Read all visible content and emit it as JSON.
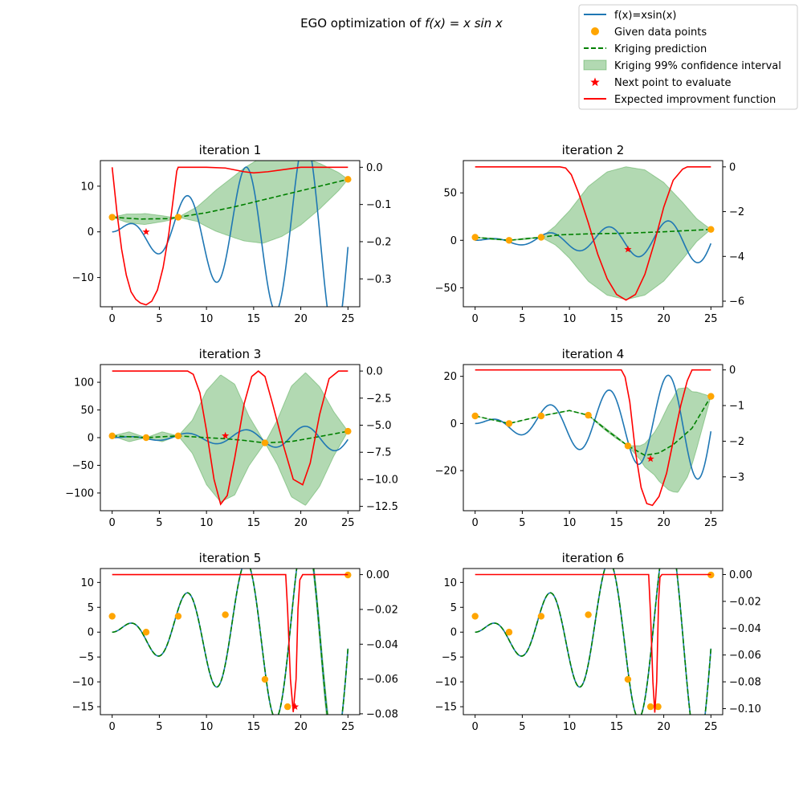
{
  "figure": {
    "title_prefix": "EGO optimization of ",
    "title_math": "f(x) = x sin x"
  },
  "legend": {
    "location": "top-right",
    "entries": [
      {
        "label": "f(x)=xsin(x)",
        "kind": "line",
        "color": "#1f77b4"
      },
      {
        "label": "Given data points",
        "kind": "dot",
        "color": "#ffa500"
      },
      {
        "label": "Kriging prediction",
        "kind": "dash",
        "color": "#008000"
      },
      {
        "label": "Kriging 99% confidence interval",
        "kind": "patch",
        "color": "#008000"
      },
      {
        "label": "Next point to evaluate",
        "kind": "star",
        "color": "#ff0000"
      },
      {
        "label": "Expected improvment function",
        "kind": "line",
        "color": "#ff0000"
      }
    ]
  },
  "colors": {
    "function": "#1f77b4",
    "data_points": "#ffa500",
    "prediction": "#008000",
    "confidence_fill": "#008000",
    "next_point": "#ff0000",
    "expected_improvement": "#ff0000"
  },
  "chart_data": [
    {
      "type": "line",
      "title": "iteration 1",
      "x_range": [
        0,
        25
      ],
      "xticks": [
        0,
        5,
        10,
        15,
        20,
        25
      ],
      "ylim": [
        -16.4,
        15.6
      ],
      "yticks": [
        -10,
        0,
        10
      ],
      "ei_ylim": [
        -0.375,
        0.018
      ],
      "ei_yticks": [
        -0.3,
        -0.2,
        -0.1,
        0.0
      ],
      "ei_ytick_labels": [
        "−0.3",
        "−0.2",
        "−0.1",
        "0.0"
      ],
      "data_points": [
        [
          0,
          3.2
        ],
        [
          7.0,
          3.2
        ],
        [
          25,
          11.5
        ]
      ],
      "next_point": [
        3.6,
        0.0
      ],
      "prediction": [
        [
          0,
          3.2
        ],
        [
          3,
          2.8
        ],
        [
          6,
          2.9
        ],
        [
          7,
          3.2
        ],
        [
          10,
          4.2
        ],
        [
          13,
          5.5
        ],
        [
          16,
          7.0
        ],
        [
          20,
          9.0
        ],
        [
          23,
          10.5
        ],
        [
          25,
          11.5
        ]
      ],
      "confidence_halfwidth": [
        [
          0,
          0
        ],
        [
          1.5,
          0.9
        ],
        [
          3.5,
          1.2
        ],
        [
          5.5,
          0.6
        ],
        [
          7,
          0
        ],
        [
          9,
          1.6
        ],
        [
          11,
          4.5
        ],
        [
          14,
          8.0
        ],
        [
          16,
          9.5
        ],
        [
          18,
          9.0
        ],
        [
          20,
          7.5
        ],
        [
          22,
          5.0
        ],
        [
          24,
          2.0
        ],
        [
          25,
          0
        ]
      ],
      "ei": [
        [
          0,
          0.0
        ],
        [
          0.5,
          -0.12
        ],
        [
          1.0,
          -0.22
        ],
        [
          1.5,
          -0.29
        ],
        [
          2.0,
          -0.335
        ],
        [
          2.5,
          -0.355
        ],
        [
          3.0,
          -0.365
        ],
        [
          3.6,
          -0.37
        ],
        [
          4.2,
          -0.36
        ],
        [
          4.8,
          -0.33
        ],
        [
          5.4,
          -0.27
        ],
        [
          6.0,
          -0.18
        ],
        [
          6.5,
          -0.08
        ],
        [
          6.85,
          -0.01
        ],
        [
          7.0,
          0.0
        ],
        [
          10.0,
          0.0
        ],
        [
          12.0,
          -0.002
        ],
        [
          14.0,
          -0.012
        ],
        [
          15.0,
          -0.015
        ],
        [
          16.5,
          -0.012
        ],
        [
          18.5,
          -0.005
        ],
        [
          20.0,
          0.0
        ],
        [
          25,
          0.0
        ]
      ]
    },
    {
      "type": "line",
      "title": "iteration 2",
      "x_range": [
        0,
        25
      ],
      "xticks": [
        0,
        5,
        10,
        15,
        20,
        25
      ],
      "ylim": [
        -70,
        84
      ],
      "yticks": [
        -50,
        0,
        50
      ],
      "ei_ylim": [
        -6.25,
        0.28
      ],
      "ei_yticks": [
        -6,
        -4,
        -2,
        0
      ],
      "ei_ytick_labels": [
        "−6",
        "−4",
        "−2",
        "0"
      ],
      "data_points": [
        [
          0,
          3.2
        ],
        [
          3.6,
          0.0
        ],
        [
          7.0,
          3.2
        ],
        [
          25,
          11.5
        ]
      ],
      "next_point": [
        16.2,
        -9.5
      ],
      "prediction": [
        [
          0,
          3.2
        ],
        [
          3.6,
          0.0
        ],
        [
          7,
          3.2
        ],
        [
          9,
          5.8
        ],
        [
          12,
          6.8
        ],
        [
          16,
          7.5
        ],
        [
          20,
          9.0
        ],
        [
          23,
          10.5
        ],
        [
          25,
          11.5
        ]
      ],
      "confidence_halfwidth": [
        [
          0,
          0
        ],
        [
          1.8,
          0.8
        ],
        [
          3.6,
          0
        ],
        [
          5.3,
          0.8
        ],
        [
          7,
          0
        ],
        [
          8.5,
          10
        ],
        [
          10,
          25
        ],
        [
          12,
          50
        ],
        [
          14,
          65
        ],
        [
          16,
          70
        ],
        [
          18,
          66
        ],
        [
          20,
          52
        ],
        [
          22,
          30
        ],
        [
          23.5,
          12
        ],
        [
          25,
          0
        ]
      ],
      "ei": [
        [
          0,
          0.0
        ],
        [
          9.0,
          0.0
        ],
        [
          9.6,
          -0.05
        ],
        [
          10.2,
          -0.35
        ],
        [
          11.0,
          -1.2
        ],
        [
          12.0,
          -2.5
        ],
        [
          13.0,
          -3.9
        ],
        [
          14.0,
          -5.0
        ],
        [
          15.0,
          -5.7
        ],
        [
          16.0,
          -5.95
        ],
        [
          17.0,
          -5.7
        ],
        [
          18.0,
          -4.8
        ],
        [
          19.0,
          -3.4
        ],
        [
          20.0,
          -1.8
        ],
        [
          21.0,
          -0.6
        ],
        [
          22.0,
          -0.1
        ],
        [
          22.5,
          0.0
        ],
        [
          25,
          0.0
        ]
      ]
    },
    {
      "type": "line",
      "title": "iteration 3",
      "x_range": [
        0,
        25
      ],
      "xticks": [
        0,
        5,
        10,
        15,
        20,
        25
      ],
      "ylim": [
        -132,
        132
      ],
      "yticks": [
        -100,
        -50,
        0,
        50,
        100
      ],
      "ei_ylim": [
        -12.9,
        0.6
      ],
      "ei_yticks": [
        -12.5,
        -10.0,
        -7.5,
        -5.0,
        -2.5,
        0.0
      ],
      "ei_ytick_labels": [
        "−12.5",
        "−10.0",
        "−7.5",
        "−5.0",
        "−2.5",
        "0.0"
      ],
      "data_points": [
        [
          0,
          3.2
        ],
        [
          3.6,
          0.0
        ],
        [
          7.0,
          3.2
        ],
        [
          16.2,
          -9.5
        ],
        [
          25,
          11.5
        ]
      ],
      "next_point": [
        12.0,
        3.5
      ],
      "prediction": [
        [
          0,
          3.2
        ],
        [
          3.6,
          0.0
        ],
        [
          7,
          3.2
        ],
        [
          10,
          0
        ],
        [
          12,
          -2
        ],
        [
          14,
          -5
        ],
        [
          16.2,
          -9.5
        ],
        [
          19,
          -7
        ],
        [
          22,
          2
        ],
        [
          25,
          11.5
        ]
      ],
      "confidence_halfwidth": [
        [
          0,
          0
        ],
        [
          1.8,
          9
        ],
        [
          3.6,
          0
        ],
        [
          5.3,
          9
        ],
        [
          7,
          0
        ],
        [
          8.5,
          30
        ],
        [
          10,
          85
        ],
        [
          11.5,
          115
        ],
        [
          13,
          100
        ],
        [
          14.5,
          45
        ],
        [
          16.2,
          0
        ],
        [
          17.5,
          40
        ],
        [
          19,
          100
        ],
        [
          20.5,
          120
        ],
        [
          22,
          90
        ],
        [
          23.5,
          40
        ],
        [
          25,
          0
        ]
      ],
      "ei": [
        [
          0,
          0.0
        ],
        [
          8.0,
          0.0
        ],
        [
          8.6,
          -0.3
        ],
        [
          9.3,
          -2.0
        ],
        [
          10.0,
          -5.5
        ],
        [
          10.8,
          -10.0
        ],
        [
          11.5,
          -12.3
        ],
        [
          12.2,
          -11.5
        ],
        [
          13.0,
          -8.0
        ],
        [
          14.0,
          -3.0
        ],
        [
          14.8,
          -0.5
        ],
        [
          15.5,
          0.0
        ],
        [
          16.2,
          -0.5
        ],
        [
          17.0,
          -3.0
        ],
        [
          18.2,
          -7.0
        ],
        [
          19.2,
          -10.0
        ],
        [
          20.2,
          -10.5
        ],
        [
          21.0,
          -8.5
        ],
        [
          22.0,
          -4.0
        ],
        [
          23.0,
          -0.7
        ],
        [
          24.0,
          0.0
        ],
        [
          25,
          0.0
        ]
      ]
    },
    {
      "type": "line",
      "title": "iteration 4",
      "x_range": [
        0,
        25
      ],
      "xticks": [
        0,
        5,
        10,
        15,
        20,
        25
      ],
      "ylim": [
        -37,
        25
      ],
      "yticks": [
        -20,
        0,
        20
      ],
      "ei_ylim": [
        -3.95,
        0.15
      ],
      "ei_yticks": [
        -3,
        -2,
        -1,
        0
      ],
      "ei_ytick_labels": [
        "−3",
        "−2",
        "−1",
        "0"
      ],
      "data_points": [
        [
          0,
          3.2
        ],
        [
          3.6,
          0.0
        ],
        [
          7.0,
          3.2
        ],
        [
          12.0,
          3.5
        ],
        [
          16.2,
          -9.5
        ],
        [
          25,
          11.5
        ]
      ],
      "next_point": [
        18.6,
        -15.0
      ],
      "prediction": [
        [
          0,
          3.2
        ],
        [
          3.6,
          0.0
        ],
        [
          7,
          3.2
        ],
        [
          10,
          5.5
        ],
        [
          12,
          3.5
        ],
        [
          14,
          -3.0
        ],
        [
          16.2,
          -9.5
        ],
        [
          18,
          -13.5
        ],
        [
          19.5,
          -12.5
        ],
        [
          21,
          -9.0
        ],
        [
          23,
          -2.0
        ],
        [
          25,
          11.5
        ]
      ],
      "confidence_halfwidth": [
        [
          0,
          0
        ],
        [
          3.6,
          0
        ],
        [
          7,
          0
        ],
        [
          12,
          0
        ],
        [
          13.5,
          0.5
        ],
        [
          15,
          0.5
        ],
        [
          16.2,
          0
        ],
        [
          17.5,
          3
        ],
        [
          19,
          9
        ],
        [
          20.5,
          18
        ],
        [
          21.5,
          22
        ],
        [
          22.5,
          19
        ],
        [
          23.5,
          12
        ],
        [
          24.5,
          4
        ],
        [
          25,
          0
        ]
      ],
      "ei": [
        [
          0,
          0.0
        ],
        [
          15.5,
          0.0
        ],
        [
          15.9,
          -0.2
        ],
        [
          16.4,
          -0.9
        ],
        [
          17.0,
          -2.3
        ],
        [
          17.6,
          -3.3
        ],
        [
          18.2,
          -3.75
        ],
        [
          18.8,
          -3.8
        ],
        [
          19.5,
          -3.55
        ],
        [
          20.3,
          -2.9
        ],
        [
          21.0,
          -2.0
        ],
        [
          21.8,
          -1.0
        ],
        [
          22.5,
          -0.3
        ],
        [
          23.0,
          0.0
        ],
        [
          25,
          0.0
        ]
      ]
    },
    {
      "type": "line",
      "title": "iteration 5",
      "x_range": [
        0,
        25
      ],
      "xticks": [
        0,
        5,
        10,
        15,
        20,
        25
      ],
      "ylim": [
        -16.6,
        12.8
      ],
      "yticks": [
        -15,
        -10,
        -5,
        0,
        5,
        10
      ],
      "ei_ylim": [
        -0.0805,
        0.0035
      ],
      "ei_yticks": [
        -0.08,
        -0.06,
        -0.04,
        -0.02,
        0.0
      ],
      "ei_ytick_labels": [
        "−0.08",
        "−0.06",
        "−0.04",
        "−0.02",
        "0.00"
      ],
      "data_points": [
        [
          0,
          3.2
        ],
        [
          3.6,
          0.0
        ],
        [
          7.0,
          3.2
        ],
        [
          12.0,
          3.5
        ],
        [
          16.2,
          -9.5
        ],
        [
          18.6,
          -15.0
        ],
        [
          25,
          11.5
        ]
      ],
      "next_point": [
        19.4,
        -15.0
      ],
      "prediction": "follows f",
      "confidence_halfwidth": [
        [
          0,
          0
        ],
        [
          18.6,
          0
        ],
        [
          19.5,
          0.3
        ],
        [
          21,
          1.2
        ],
        [
          22.5,
          2.0
        ],
        [
          24,
          1.0
        ],
        [
          25,
          0
        ]
      ],
      "ei": [
        [
          0,
          0.0
        ],
        [
          18.4,
          0.0
        ],
        [
          18.6,
          -0.02
        ],
        [
          18.9,
          -0.06
        ],
        [
          19.2,
          -0.079
        ],
        [
          19.5,
          -0.06
        ],
        [
          19.7,
          -0.02
        ],
        [
          19.9,
          -0.003
        ],
        [
          20.2,
          0.0
        ],
        [
          25,
          0.0
        ]
      ]
    },
    {
      "type": "line",
      "title": "iteration 6",
      "x_range": [
        0,
        25
      ],
      "xticks": [
        0,
        5,
        10,
        15,
        20,
        25
      ],
      "ylim": [
        -16.6,
        12.8
      ],
      "yticks": [
        -15,
        -10,
        -5,
        0,
        5,
        10
      ],
      "ei_ylim": [
        -0.1045,
        0.0045
      ],
      "ei_yticks": [
        -0.1,
        -0.08,
        -0.06,
        -0.04,
        -0.02,
        0.0
      ],
      "ei_ytick_labels": [
        "−0.10",
        "−0.08",
        "−0.06",
        "−0.04",
        "−0.02",
        "0.00"
      ],
      "data_points": [
        [
          0,
          3.2
        ],
        [
          3.6,
          0.0
        ],
        [
          7.0,
          3.2
        ],
        [
          12.0,
          3.5
        ],
        [
          16.2,
          -9.5
        ],
        [
          18.6,
          -15.0
        ],
        [
          19.4,
          -15.0
        ],
        [
          25,
          11.5
        ]
      ],
      "next_point": null,
      "prediction": "follows f",
      "confidence_halfwidth": [
        [
          0,
          0
        ],
        [
          25,
          0
        ]
      ],
      "ei": [
        [
          0,
          0.0
        ],
        [
          18.4,
          0.0
        ],
        [
          18.6,
          -0.03
        ],
        [
          18.85,
          -0.08
        ],
        [
          19.05,
          -0.103
        ],
        [
          19.25,
          -0.08
        ],
        [
          19.45,
          -0.02
        ],
        [
          19.6,
          -0.002
        ],
        [
          19.8,
          0.0
        ],
        [
          25,
          0.0
        ]
      ]
    }
  ]
}
